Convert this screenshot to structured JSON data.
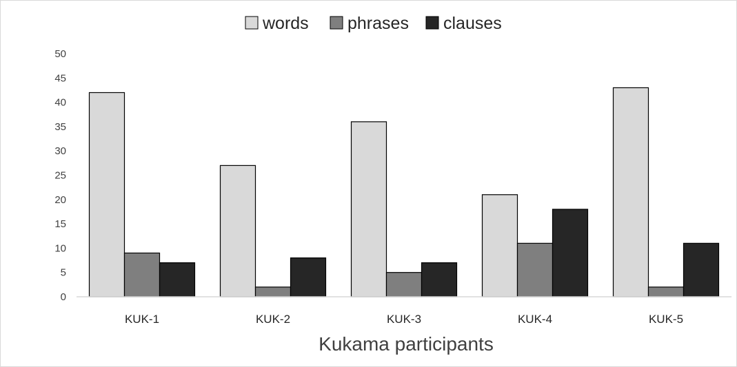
{
  "chart_data": {
    "type": "bar",
    "title": "",
    "xlabel": "Kukama participants",
    "ylabel": "",
    "ylim": [
      0,
      50
    ],
    "ytick_step": 5,
    "yticks": [
      "0",
      "5",
      "10",
      "15",
      "20",
      "25",
      "30",
      "35",
      "40",
      "45",
      "50"
    ],
    "grid": false,
    "legend_position": "top-center",
    "categories": [
      "KUK-1",
      "KUK-2",
      "KUK-3",
      "KUK-4",
      "KUK-5"
    ],
    "series": [
      {
        "name": "words",
        "color": "#d9d9d9",
        "values": [
          42,
          27,
          36,
          21,
          43
        ]
      },
      {
        "name": "phrases",
        "color": "#7f7f7f",
        "values": [
          9,
          2,
          5,
          11,
          2
        ]
      },
      {
        "name": "clauses",
        "color": "#262626",
        "values": [
          7,
          8,
          7,
          18,
          11
        ]
      }
    ]
  }
}
